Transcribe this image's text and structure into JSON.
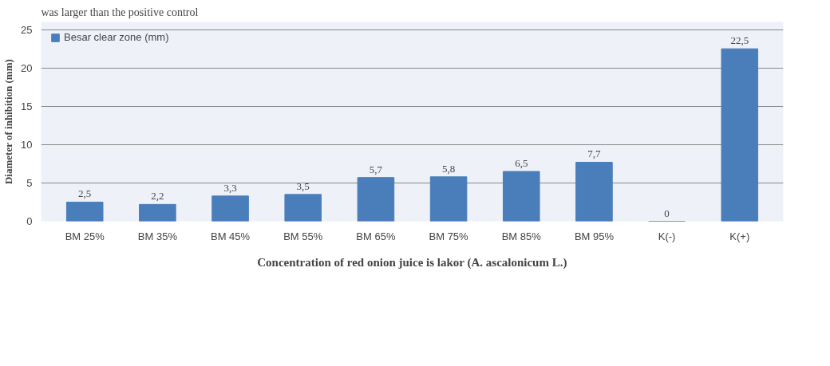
{
  "chart_data": {
    "type": "bar",
    "annotations": [
      "was larger than the positive control"
    ],
    "xlabel": "Concentration of red onion juice is lakor (A. ascalonicum L.)",
    "ylabel": "Diameter of inhibition (mm)",
    "categories": [
      "BM 25%",
      "BM 35%",
      "BM 45%",
      "BM 55%",
      "BM 65%",
      "BM 75%",
      "BM 85%",
      "BM 95%",
      "K(-)",
      "K(+)"
    ],
    "series": [
      {
        "name": "Besar clear zone (mm)",
        "color": "#4a7ebb",
        "values": [
          2.5,
          2.2,
          3.3,
          3.5,
          5.7,
          5.8,
          6.5,
          7.7,
          0,
          22.5
        ],
        "value_labels": [
          "2,5",
          "2,2",
          "3,3",
          "3,5",
          "5,7",
          "5,8",
          "6,5",
          "7,7",
          "0",
          "22,5"
        ]
      }
    ],
    "ylim": [
      0,
      26
    ],
    "yticks": [
      0,
      5,
      10,
      15,
      20,
      25
    ],
    "grid": "y",
    "legend": "top left"
  }
}
